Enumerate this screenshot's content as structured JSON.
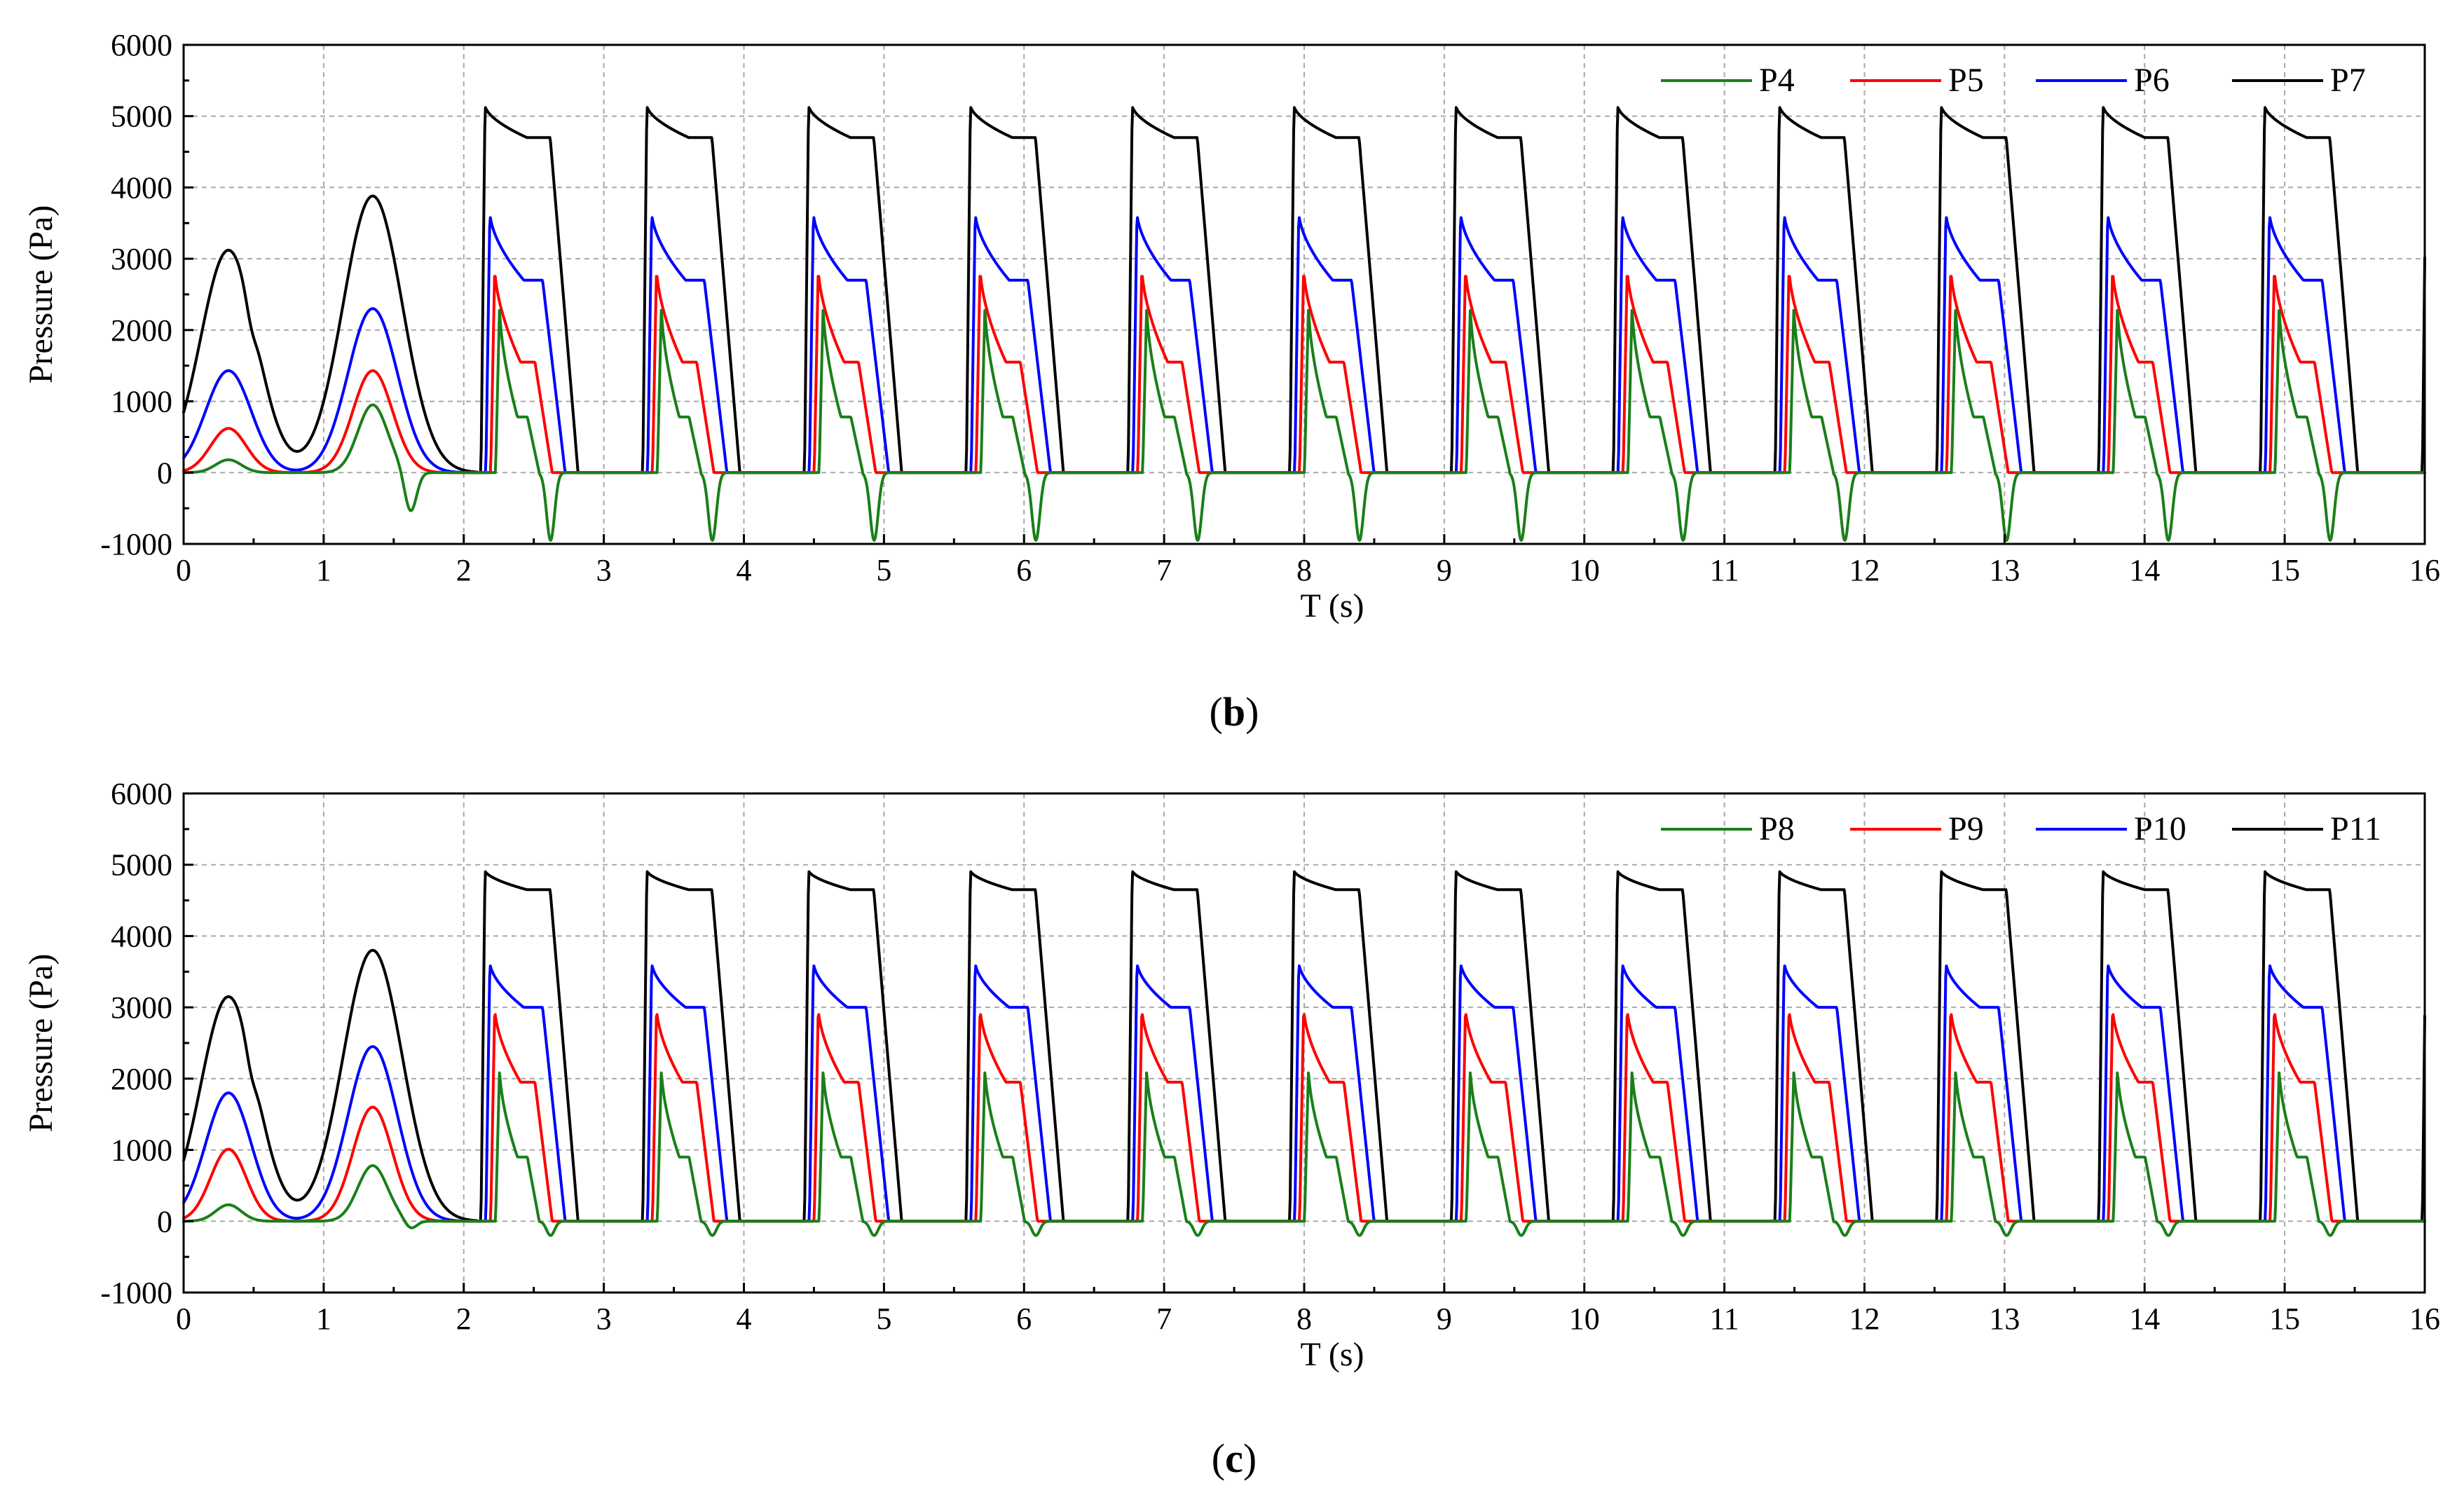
{
  "chart_data": [
    {
      "type": "line",
      "caption_paren_open": "(",
      "caption_letter": "b",
      "caption_paren_close": ")",
      "xlabel": "T (s)",
      "ylabel": "Pressure (Pa)",
      "xlim": [
        0,
        16
      ],
      "ylim": [
        -1000,
        6000
      ],
      "xticks": [
        0,
        1,
        2,
        3,
        4,
        5,
        6,
        7,
        8,
        9,
        10,
        11,
        12,
        13,
        14,
        15,
        16
      ],
      "yticks": [
        -1000,
        0,
        1000,
        2000,
        3000,
        4000,
        5000,
        6000
      ],
      "grid": true,
      "legend_position": "top-right",
      "period": 1.155,
      "cycle_start": 2.1,
      "series": [
        {
          "name": "P4",
          "color": "#1a7f1a",
          "warmup_peaks": [
            180,
            950
          ],
          "peak": 2350,
          "shoulder": 780,
          "dip": -950
        },
        {
          "name": "P5",
          "color": "#ff0000",
          "warmup_peaks": [
            620,
            1430
          ],
          "peak": 2880,
          "shoulder": 1550,
          "dip": 0
        },
        {
          "name": "P6",
          "color": "#0000ff",
          "warmup_peaks": [
            1430,
            2300
          ],
          "peak": 3650,
          "shoulder": 2700,
          "dip": 0
        },
        {
          "name": "P7",
          "color": "#000000",
          "warmup_peaks": [
            3120,
            3880
          ],
          "peak": 5150,
          "shoulder": 4700,
          "dip": 0
        }
      ]
    },
    {
      "type": "line",
      "caption_paren_open": "(",
      "caption_letter": "c",
      "caption_paren_close": ")",
      "xlabel": "T (s)",
      "ylabel": "Pressure (Pa)",
      "xlim": [
        0,
        16
      ],
      "ylim": [
        -1000,
        6000
      ],
      "xticks": [
        0,
        1,
        2,
        3,
        4,
        5,
        6,
        7,
        8,
        9,
        10,
        11,
        12,
        13,
        14,
        15,
        16
      ],
      "yticks": [
        -1000,
        0,
        1000,
        2000,
        3000,
        4000,
        5000,
        6000
      ],
      "grid": true,
      "legend_position": "top-right",
      "period": 1.155,
      "cycle_start": 2.1,
      "series": [
        {
          "name": "P8",
          "color": "#1a7f1a",
          "warmup_peaks": [
            230,
            780
          ],
          "peak": 2150,
          "shoulder": 900,
          "dip": -200
        },
        {
          "name": "P9",
          "color": "#ff0000",
          "warmup_peaks": [
            1010,
            1600
          ],
          "peak": 3000,
          "shoulder": 1950,
          "dip": 0
        },
        {
          "name": "P10",
          "color": "#0000ff",
          "warmup_peaks": [
            1800,
            2450
          ],
          "peak": 3630,
          "shoulder": 3000,
          "dip": 0
        },
        {
          "name": "P11",
          "color": "#000000",
          "warmup_peaks": [
            3150,
            3800
          ],
          "peak": 4920,
          "shoulder": 4650,
          "dip": 0
        }
      ]
    }
  ]
}
